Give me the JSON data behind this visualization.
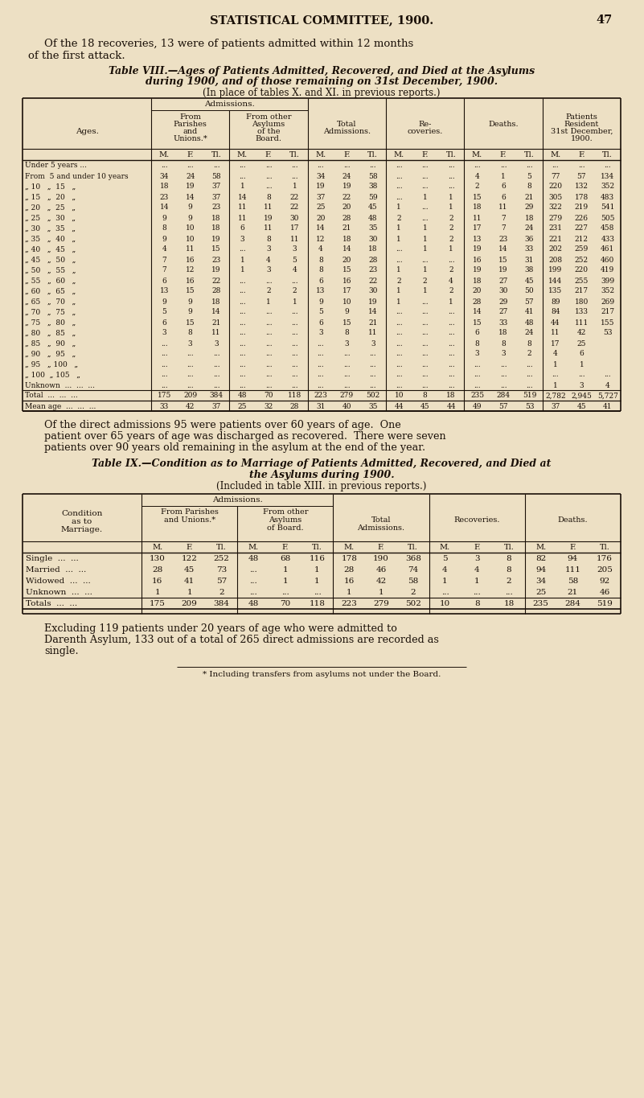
{
  "bg_color": "#ede0c4",
  "text_color": "#1a1008",
  "page_header": "STATISTICAL COMMITTEE, 1900.",
  "page_number": "47",
  "intro_text_1": "Of the 18 recoveries, 13 were of patients admitted within 12 months",
  "intro_text_2": "of the first attack.",
  "table8_title_line1": "Table VIII.—Ages of Patients Admitted, Recovered, and Died at the Asylums",
  "table8_title_line2": "during 1900, and of those remaining on 31st December, 1900.",
  "table8_subtitle": "(In place of tables X. and XI. in previous reports.)",
  "table8_rows": [
    [
      "Under 5 years ...",
      "...",
      "...",
      "...",
      "...",
      "...",
      "...",
      "...",
      "...",
      "...",
      "...",
      "...",
      "...",
      "...",
      "...",
      "...",
      "...",
      "...",
      "..."
    ],
    [
      "From  5 and under 10 years",
      "34",
      "24",
      "58",
      "...",
      "...",
      "...",
      "34",
      "24",
      "58",
      "...",
      "...",
      "...",
      "4",
      "1",
      "5",
      "77",
      "57",
      "134"
    ],
    [
      "„ 10   „  15   „",
      "18",
      "19",
      "37",
      "1",
      "...",
      "1",
      "19",
      "19",
      "38",
      "...",
      "...",
      "...",
      "2",
      "6",
      "8",
      "220",
      "132",
      "352"
    ],
    [
      "„ 15   „  20   „",
      "23",
      "14",
      "37",
      "14",
      "8",
      "22",
      "37",
      "22",
      "59",
      "...",
      "1",
      "1",
      "15",
      "6",
      "21",
      "305",
      "178",
      "483"
    ],
    [
      "„ 20   „  25   „",
      "14",
      "9",
      "23",
      "11",
      "11",
      "22",
      "25",
      "20",
      "45",
      "1",
      "...",
      "1",
      "18",
      "11",
      "29",
      "322",
      "219",
      "541"
    ],
    [
      "„ 25   „  30   „",
      "9",
      "9",
      "18",
      "11",
      "19",
      "30",
      "20",
      "28",
      "48",
      "2",
      "...",
      "2",
      "11",
      "7",
      "18",
      "279",
      "226",
      "505"
    ],
    [
      "„ 30   „  35   „",
      "8",
      "10",
      "18",
      "6",
      "11",
      "17",
      "14",
      "21",
      "35",
      "1",
      "1",
      "2",
      "17",
      "7",
      "24",
      "231",
      "227",
      "458"
    ],
    [
      "„ 35   „  40   „",
      "9",
      "10",
      "19",
      "3",
      "8",
      "11",
      "12",
      "18",
      "30",
      "1",
      "1",
      "2",
      "13",
      "23",
      "36",
      "221",
      "212",
      "433"
    ],
    [
      "„ 40   „  45   „",
      "4",
      "11",
      "15",
      "...",
      "3",
      "3",
      "4",
      "14",
      "18",
      "...",
      "1",
      "1",
      "19",
      "14",
      "33",
      "202",
      "259",
      "461"
    ],
    [
      "„ 45   „  50   „",
      "7",
      "16",
      "23",
      "1",
      "4",
      "5",
      "8",
      "20",
      "28",
      "...",
      "...",
      "...",
      "16",
      "15",
      "31",
      "208",
      "252",
      "460"
    ],
    [
      "„ 50   „  55   „",
      "7",
      "12",
      "19",
      "1",
      "3",
      "4",
      "8",
      "15",
      "23",
      "1",
      "1",
      "2",
      "19",
      "19",
      "38",
      "199",
      "220",
      "419"
    ],
    [
      "„ 55   „  60   „",
      "6",
      "16",
      "22",
      "...",
      "...",
      "...",
      "6",
      "16",
      "22",
      "2",
      "2",
      "4",
      "18",
      "27",
      "45",
      "144",
      "255",
      "399"
    ],
    [
      "„ 60   „  65   „",
      "13",
      "15",
      "28",
      "...",
      "2",
      "2",
      "13",
      "17",
      "30",
      "1",
      "1",
      "2",
      "20",
      "30",
      "50",
      "135",
      "217",
      "352"
    ],
    [
      "„ 65   „  70   „",
      "9",
      "9",
      "18",
      "...",
      "1",
      "1",
      "9",
      "10",
      "19",
      "1",
      "...",
      "1",
      "28",
      "29",
      "57",
      "89",
      "180",
      "269"
    ],
    [
      "„ 70   „  75   „",
      "5",
      "9",
      "14",
      "...",
      "...",
      "...",
      "5",
      "9",
      "14",
      "...",
      "...",
      "...",
      "14",
      "27",
      "41",
      "84",
      "133",
      "217"
    ],
    [
      "„ 75   „  80   „",
      "6",
      "15",
      "21",
      "...",
      "...",
      "...",
      "6",
      "15",
      "21",
      "...",
      "...",
      "...",
      "15",
      "33",
      "48",
      "44",
      "111",
      "155"
    ],
    [
      "„ 80   „  85   „",
      "3",
      "8",
      "11",
      "...",
      "...",
      "...",
      "3",
      "8",
      "11",
      "...",
      "...",
      "...",
      "6",
      "18",
      "24",
      "11",
      "42",
      "53"
    ],
    [
      "„ 85   „  90   „",
      "...",
      "3",
      "3",
      "...",
      "...",
      "...",
      "...",
      "3",
      "3",
      "...",
      "...",
      "...",
      "8",
      "8",
      "8",
      "17",
      "25",
      ""
    ],
    [
      "„ 90   „  95   „",
      "...",
      "...",
      "...",
      "...",
      "...",
      "...",
      "...",
      "...",
      "...",
      "...",
      "...",
      "...",
      "3",
      "3",
      "2",
      "4",
      "6",
      ""
    ],
    [
      "„ 95   „ 100   „",
      "...",
      "...",
      "...",
      "...",
      "...",
      "...",
      "...",
      "...",
      "...",
      "...",
      "...",
      "...",
      "...",
      "...",
      "...",
      "1",
      "1",
      ""
    ],
    [
      "„ 100  „ 105   „",
      "...",
      "...",
      "...",
      "...",
      "...",
      "...",
      "...",
      "...",
      "...",
      "...",
      "...",
      "...",
      "...",
      "...",
      "...",
      "...",
      "...",
      "..."
    ],
    [
      "Unknown  ...  ...  ...",
      "...",
      "...",
      "...",
      "...",
      "...",
      "...",
      "...",
      "...",
      "...",
      "...",
      "...",
      "...",
      "...",
      "...",
      "...",
      "1",
      "3",
      "4"
    ],
    [
      "Total  ...  ...  ...",
      "175",
      "209",
      "384",
      "48",
      "70",
      "118",
      "223",
      "279",
      "502",
      "10",
      "8",
      "18",
      "235",
      "284",
      "519",
      "2,782",
      "2,945",
      "5,727"
    ],
    [
      "Mean age  ...  ...  ...",
      "33",
      "42",
      "37",
      "25",
      "32",
      "28",
      "31",
      "40",
      "35",
      "44",
      "45",
      "44",
      "49",
      "57",
      "53",
      "37",
      "45",
      "41"
    ]
  ],
  "between_text": [
    "Of the direct admissions 95 were patients over 60 years of age.  One",
    "patient over 65 years of age was discharged as recovered.  There were seven",
    "patients over 90 years old remaining in the asylum at the end of the year."
  ],
  "table9_title_line1": "Table IX.—Condition as to Marriage of Patients Admitted, Recovered, and Died at",
  "table9_title_line2": "the Asylums during 1900.",
  "table9_subtitle": "(Included in table XIII. in previous reports.)",
  "table9_rows": [
    [
      "Single  ...  ...",
      "130",
      "122",
      "252",
      "48",
      "68",
      "116",
      "178",
      "190",
      "368",
      "5",
      "3",
      "8",
      "82",
      "94",
      "176"
    ],
    [
      "Married  ...  ...",
      "28",
      "45",
      "73",
      "...",
      "1",
      "1",
      "28",
      "46",
      "74",
      "4",
      "4",
      "8",
      "94",
      "111",
      "205"
    ],
    [
      "Widowed  ...  ...",
      "16",
      "41",
      "57",
      "...",
      "1",
      "1",
      "16",
      "42",
      "58",
      "1",
      "1",
      "2",
      "34",
      "58",
      "92"
    ],
    [
      "Unknown  ...  ...",
      "1",
      "1",
      "2",
      "...",
      "...",
      "...",
      "1",
      "1",
      "2",
      "...",
      "...",
      "...",
      "25",
      "21",
      "46"
    ],
    [
      "Totals  ...  ...",
      "175",
      "209",
      "384",
      "48",
      "70",
      "118",
      "223",
      "279",
      "502",
      "10",
      "8",
      "18",
      "235",
      "284",
      "519"
    ]
  ],
  "footer_lines": [
    "Excluding 119 patients under 20 years of age who were admitted to",
    "Darenth Asylum, 133 out of a total of 265 direct admissions are recorded as",
    "single."
  ],
  "footnote": "* Including transfers from asylums not under the Board."
}
